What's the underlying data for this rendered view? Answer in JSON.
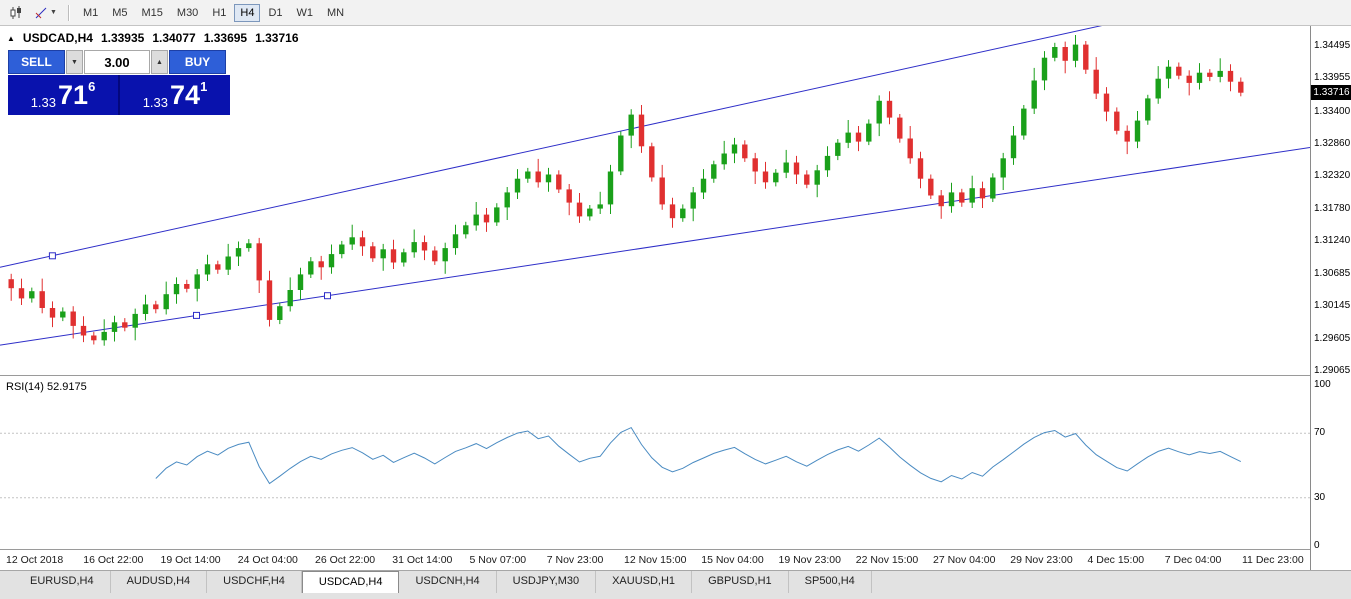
{
  "toolbar": {
    "timeframes": [
      "M1",
      "M5",
      "M15",
      "M30",
      "H1",
      "H4",
      "D1",
      "W1",
      "MN"
    ],
    "active_timeframe": "H4"
  },
  "icons": {
    "caret_down": "▼",
    "spin_down": "▼",
    "spin_up": "▲"
  },
  "symbol_header": {
    "direction": "▲",
    "symbol": "USDCAD,H4",
    "open": "1.33935",
    "high": "1.34077",
    "low": "1.33695",
    "close": "1.33716"
  },
  "trade_panel": {
    "sell_label": "SELL",
    "buy_label": "BUY",
    "lot_size": "3.00",
    "sell_price": {
      "prefix": "1.33",
      "big": "71",
      "sup": "6"
    },
    "buy_price": {
      "prefix": "1.33",
      "big": "74",
      "sup": "1"
    },
    "panel_color": "#0912ad",
    "button_color": "#2e5fd8"
  },
  "tabs": {
    "items": [
      "EURUSD,H4",
      "AUDUSD,H4",
      "USDCHF,H4",
      "USDCAD,H4",
      "USDCNH,H4",
      "USDJPY,M30",
      "XAUUSD,H1",
      "GBPUSD,H1",
      "SP500,H4"
    ],
    "active": "USDCAD,H4"
  },
  "chart_data": [
    {
      "type": "candlestick",
      "symbol": "USDCAD",
      "timeframe": "H4",
      "ylim": [
        1.29,
        1.3483
      ],
      "y_axis_labels": [
        "1.34495",
        "1.33955",
        "1.33400",
        "1.32860",
        "1.32320",
        "1.31780",
        "1.31240",
        "1.30685",
        "1.30145",
        "1.29605",
        "1.29065"
      ],
      "current_price": 1.33716,
      "badge_text": "1.33716",
      "x_labels": [
        "12 Oct 2018",
        "16 Oct 22:00",
        "19 Oct 14:00",
        "24 Oct 04:00",
        "26 Oct 22:00",
        "31 Oct 14:00",
        "5 Nov 07:00",
        "7 Nov 23:00",
        "12 Nov 15:00",
        "15 Nov 04:00",
        "19 Nov 23:00",
        "22 Nov 15:00",
        "27 Nov 04:00",
        "29 Nov 23:00",
        "4 Dec 15:00",
        "7 Dec 04:00",
        "11 Dec 23:00"
      ],
      "first_open": 1.306,
      "closes": [
        1.3045,
        1.3028,
        1.304,
        1.3012,
        1.2996,
        1.3006,
        1.2982,
        1.2966,
        1.2958,
        1.2972,
        1.2988,
        1.2979,
        1.3002,
        1.3018,
        1.301,
        1.3035,
        1.3052,
        1.3044,
        1.3068,
        1.3085,
        1.3076,
        1.3098,
        1.3112,
        1.312,
        1.3058,
        1.2992,
        1.3015,
        1.3042,
        1.3068,
        1.309,
        1.308,
        1.3102,
        1.3118,
        1.313,
        1.3115,
        1.3095,
        1.311,
        1.3088,
        1.3105,
        1.3122,
        1.3108,
        1.309,
        1.3112,
        1.3135,
        1.315,
        1.3168,
        1.3155,
        1.318,
        1.3205,
        1.3228,
        1.324,
        1.3222,
        1.3235,
        1.321,
        1.3188,
        1.3165,
        1.3178,
        1.3185,
        1.324,
        1.33,
        1.3335,
        1.3282,
        1.323,
        1.3185,
        1.3162,
        1.3178,
        1.3205,
        1.3228,
        1.3252,
        1.327,
        1.3285,
        1.3262,
        1.324,
        1.3222,
        1.3238,
        1.3255,
        1.3235,
        1.3218,
        1.3242,
        1.3266,
        1.3288,
        1.3305,
        1.329,
        1.332,
        1.3358,
        1.333,
        1.3295,
        1.3262,
        1.3228,
        1.32,
        1.3182,
        1.3205,
        1.3188,
        1.3212,
        1.3195,
        1.323,
        1.3262,
        1.33,
        1.3345,
        1.3392,
        1.343,
        1.3448,
        1.3425,
        1.3452,
        1.341,
        1.337,
        1.334,
        1.3308,
        1.329,
        1.3325,
        1.3362,
        1.3395,
        1.3415,
        1.34,
        1.3388,
        1.3405,
        1.3398,
        1.3408,
        1.339,
        1.33716
      ],
      "wick_pattern": [
        0.0009,
        0.0016,
        0.0006,
        0.0021,
        0.0011,
        0.0007
      ],
      "up_color": "#1aa01a",
      "down_color": "#e03030",
      "channel": {
        "color": "#2e2ec8",
        "upper": {
          "start_price": 1.308,
          "end_price": 1.356,
          "handle_fracs": [
            0.04
          ]
        },
        "lower": {
          "start_price": 1.295,
          "end_price": 1.328,
          "handle_fracs": [
            0.15,
            0.25
          ]
        }
      }
    },
    {
      "type": "line",
      "name": "RSI",
      "label": "RSI(14) 52.9175",
      "period": 14,
      "current_value": "52.9175",
      "ylim": [
        0,
        100
      ],
      "axis_labels": [
        "100",
        "70",
        "30",
        "0"
      ],
      "level_lines": [
        70,
        30
      ],
      "line_color": "#4a8bc2"
    }
  ]
}
